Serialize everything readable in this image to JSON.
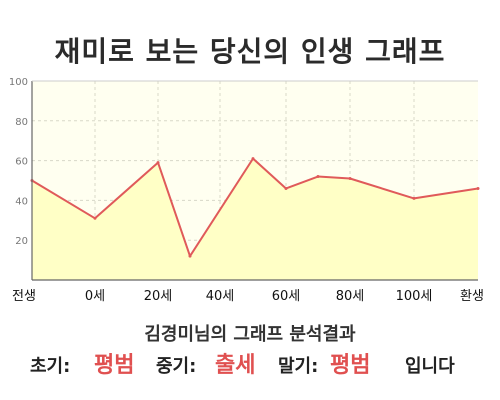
{
  "title": "재미로 보는 당신의 인생 그래프",
  "subtitle": "김경미님의 그래프 분석결과",
  "summary": {
    "early_label": "초기:",
    "early_value": "평범",
    "middle_label": "중기:",
    "middle_value": "출세",
    "late_label": "말기:",
    "late_value": "평범",
    "ending": "입니다"
  },
  "colors": {
    "line": "#e05a5a",
    "fill": "#ffffc6",
    "plot_bg": "#fffff0",
    "grid": "#d8d8c8",
    "highlight_text": "#e05050"
  },
  "chart_data": {
    "type": "area",
    "x_tick_labels": [
      "전생",
      "0세",
      "20세",
      "40세",
      "60세",
      "80세",
      "100세",
      "환생"
    ],
    "y_tick_labels": [
      "20",
      "40",
      "60",
      "80",
      "100"
    ],
    "ylim": [
      0,
      100
    ],
    "grid": true,
    "series": [
      {
        "points": [
          {
            "x": "전생",
            "y": 50
          },
          {
            "x": "0세",
            "y": 31
          },
          {
            "x": "20세",
            "y": 59
          },
          {
            "x": "30세",
            "y": 12
          },
          {
            "x": "50세",
            "y": 61
          },
          {
            "x": "60세",
            "y": 46
          },
          {
            "x": "70세",
            "y": 52
          },
          {
            "x": "80세",
            "y": 51
          },
          {
            "x": "100세",
            "y": 41
          },
          {
            "x": "환생",
            "y": 46
          }
        ]
      }
    ]
  }
}
